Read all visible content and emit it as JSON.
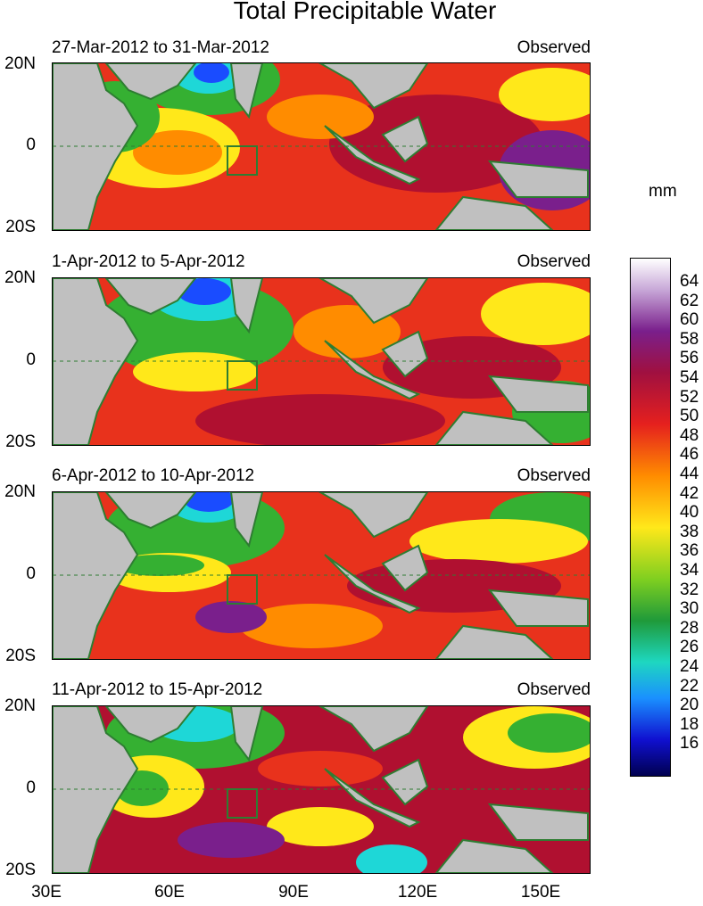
{
  "title": "Total Precipitable Water",
  "unit_label": "mm",
  "panels": [
    {
      "date_range": "27-Mar-2012 to 31-Mar-2012",
      "source": "Observed"
    },
    {
      "date_range": "1-Apr-2012 to 5-Apr-2012",
      "source": "Observed"
    },
    {
      "date_range": "6-Apr-2012 to 10-Apr-2012",
      "source": "Observed"
    },
    {
      "date_range": "11-Apr-2012 to 15-Apr-2012",
      "source": "Observed"
    }
  ],
  "lat_labels": [
    "20N",
    "0",
    "20S"
  ],
  "lon_labels": [
    "30E",
    "60E",
    "90E",
    "120E",
    "150E"
  ],
  "colorbar_labels": [
    "64",
    "62",
    "60",
    "58",
    "56",
    "54",
    "52",
    "50",
    "48",
    "46",
    "44",
    "42",
    "40",
    "38",
    "36",
    "34",
    "32",
    "30",
    "28",
    "26",
    "24",
    "22",
    "20",
    "18",
    "16"
  ],
  "colors": {
    "land": "#c0c0c0",
    "coast": "#2e7d32",
    "scale_top": "#ffffff",
    "scale_purple": "#7a1f8c",
    "scale_red": "#e5201e",
    "scale_orange": "#ff8c00",
    "scale_yellow": "#ffe81a",
    "scale_green": "#35b032",
    "scale_cyan": "#1ed7d7",
    "scale_blue": "#1a4cff",
    "scale_bottom": "#000050"
  }
}
